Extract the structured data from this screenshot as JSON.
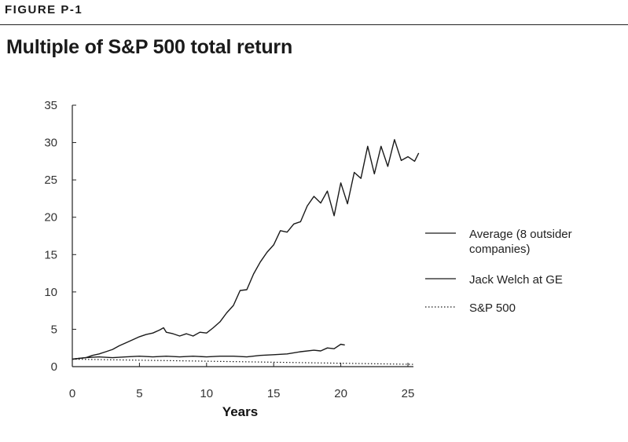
{
  "figure_label": "FIGURE P-1",
  "chart_data": {
    "type": "line",
    "title": "Multiple of S&P 500 total return",
    "xlabel": "Years",
    "ylabel": "",
    "xlim": [
      0,
      25
    ],
    "ylim": [
      0,
      35
    ],
    "x_ticks": [
      0,
      5,
      10,
      15,
      20,
      25
    ],
    "y_ticks": [
      0,
      5,
      10,
      15,
      20,
      25,
      30,
      35
    ],
    "grid": false,
    "legend_position": "right",
    "series": [
      {
        "name": "Average (8 outsider companies)",
        "legend_lines": [
          "Average (8 outsider",
          "companies)"
        ],
        "style": "solid",
        "x": [
          0,
          0.5,
          1,
          1.5,
          2,
          2.5,
          3,
          3.5,
          4,
          4.5,
          5,
          5.5,
          6,
          6.5,
          6.8,
          7,
          7.5,
          8,
          8.5,
          9,
          9.5,
          10,
          10.5,
          11,
          11.5,
          12,
          12.5,
          13,
          13.5,
          14,
          14.5,
          15,
          15.5,
          16,
          16.5,
          17,
          17.5,
          18,
          18.5,
          19,
          19.5,
          20,
          20.5,
          21,
          21.5,
          22,
          22.5,
          23,
          23.5,
          24,
          24.5,
          25,
          25.5,
          25.8
        ],
        "y": [
          1,
          1.1,
          1.2,
          1.5,
          1.7,
          2,
          2.3,
          2.8,
          3.2,
          3.6,
          4,
          4.3,
          4.5,
          4.9,
          5.2,
          4.6,
          4.4,
          4.1,
          4.4,
          4.1,
          4.6,
          4.5,
          5.2,
          6,
          7.2,
          8.2,
          10.2,
          10.3,
          12.4,
          14,
          15.3,
          16.3,
          18.2,
          18,
          19.1,
          19.4,
          21.5,
          22.8,
          21.9,
          23.5,
          20.2,
          24.6,
          21.8,
          26,
          25.2,
          29.5,
          25.8,
          29.5,
          26.8,
          30.4,
          27.6,
          28.1,
          27.5,
          28.6
        ]
      },
      {
        "name": "Jack Welch at GE",
        "legend_lines": [
          "Jack Welch at GE"
        ],
        "style": "solid",
        "x": [
          0,
          1,
          2,
          3,
          4,
          5,
          6,
          7,
          8,
          9,
          10,
          11,
          12,
          13,
          14,
          15,
          16,
          17,
          18,
          18.5,
          19,
          19.5,
          20,
          20.3
        ],
        "y": [
          1,
          1.2,
          1.3,
          1.2,
          1.3,
          1.4,
          1.3,
          1.4,
          1.3,
          1.4,
          1.3,
          1.4,
          1.4,
          1.3,
          1.5,
          1.6,
          1.7,
          2,
          2.2,
          2.1,
          2.5,
          2.4,
          3,
          2.9
        ]
      },
      {
        "name": "S&P 500",
        "legend_lines": [
          "S&P 500"
        ],
        "style": "dotted",
        "x": [
          0,
          25.5
        ],
        "y": [
          1,
          0.3
        ]
      }
    ]
  }
}
